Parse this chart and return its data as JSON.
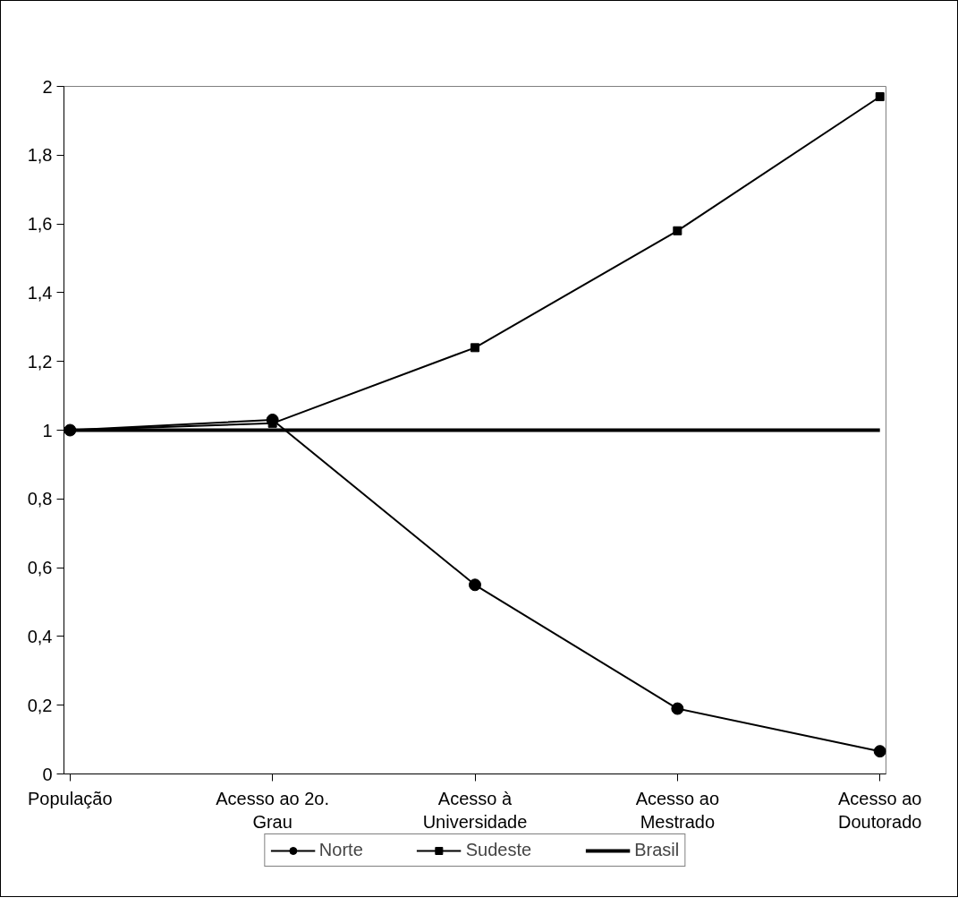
{
  "chart_data": {
    "type": "line",
    "categories": [
      "População",
      "Acesso ao 2o.\nGrau",
      "Acesso à\nUniversidade",
      "Acesso ao\nMestrado",
      "Acesso ao\nDoutorado"
    ],
    "series": [
      {
        "name": "Norte",
        "color": "#000000",
        "marker": "circle",
        "values": [
          1.0,
          1.03,
          0.55,
          0.19,
          0.066
        ]
      },
      {
        "name": "Sudeste",
        "color": "#000000",
        "marker": "square",
        "values": [
          1.0,
          1.02,
          1.24,
          1.58,
          1.97
        ]
      },
      {
        "name": "Brasil",
        "color": "#000000",
        "marker": "none",
        "values": [
          1.0,
          1.0,
          1.0,
          1.0,
          1.0
        ]
      }
    ],
    "ylim": [
      0,
      2
    ],
    "yticks": [
      0,
      {
        "value": 0.2,
        "label": "0,2"
      },
      {
        "value": 0.4,
        "label": "0,4"
      },
      {
        "value": 0.6,
        "label": "0,6"
      },
      {
        "value": 0.8,
        "label": "0,8"
      },
      1,
      {
        "value": 1.2,
        "label": "1,2"
      },
      {
        "value": 1.4,
        "label": "1,4"
      },
      {
        "value": 1.6,
        "label": "1,6"
      },
      {
        "value": 1.8,
        "label": "1,8"
      },
      2
    ],
    "grid": false,
    "legend": "bottom",
    "line_style": "solid"
  }
}
